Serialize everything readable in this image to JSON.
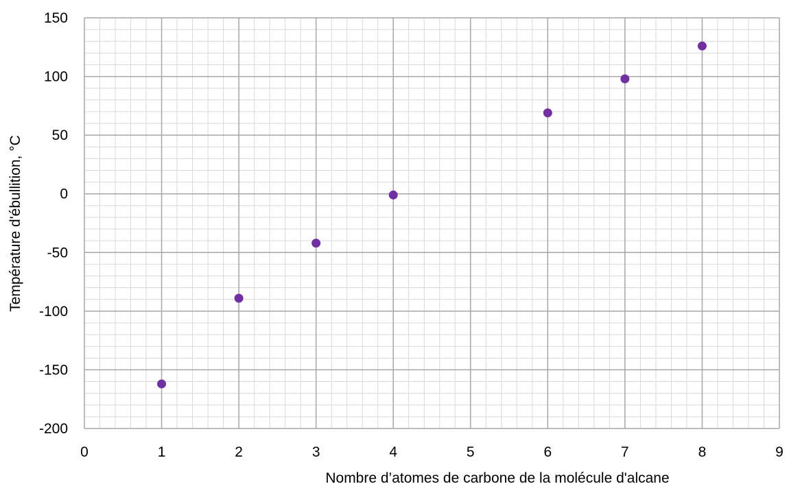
{
  "chart_data": {
    "type": "scatter",
    "title": "",
    "xlabel": "Nombre d’atomes de carbone de la molécule d'alcane",
    "ylabel": "Température d'ébullition, °C",
    "xlim": [
      0,
      9
    ],
    "ylim": [
      -200,
      150
    ],
    "x_major_step": 1,
    "y_major_step": 50,
    "x_minor_step": 0.2,
    "y_minor_step": 10,
    "grid": true,
    "legend": "none",
    "x_ticks": [
      "0",
      "1",
      "2",
      "3",
      "4",
      "5",
      "6",
      "7",
      "8",
      "9"
    ],
    "y_ticks": [
      "-200",
      "-150",
      "-100",
      "-50",
      "0",
      "50",
      "100",
      "150"
    ],
    "series": [
      {
        "x": [
          1,
          2,
          3,
          4,
          6,
          7,
          8
        ],
        "values": [
          -162,
          -89,
          -42,
          -1,
          69,
          98,
          126
        ]
      }
    ],
    "colors": {
      "marker": "#7030a0",
      "major_grid": "#a6a6a6",
      "minor_grid": "#d9d9d9"
    }
  }
}
